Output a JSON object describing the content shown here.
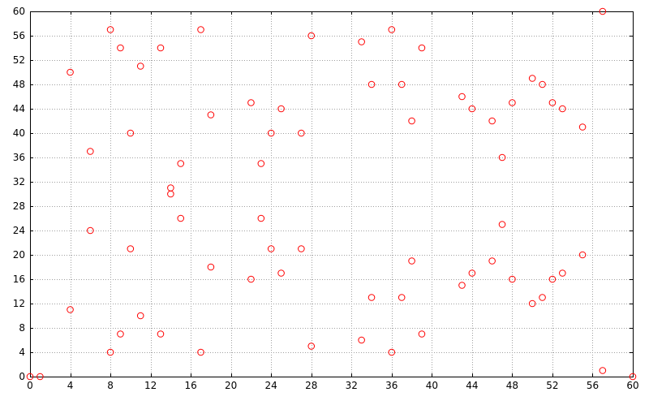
{
  "chart_data": {
    "type": "scatter",
    "title": "",
    "xlabel": "",
    "ylabel": "",
    "xlim": [
      0,
      60
    ],
    "ylim": [
      0,
      60
    ],
    "x_ticks": [
      0,
      4,
      8,
      12,
      16,
      20,
      24,
      28,
      32,
      36,
      40,
      44,
      48,
      52,
      56,
      60
    ],
    "y_ticks": [
      0,
      4,
      8,
      12,
      16,
      20,
      24,
      28,
      32,
      36,
      40,
      44,
      48,
      52,
      56,
      60
    ],
    "x_tick_labels": [
      "0",
      "4",
      "8",
      "12",
      "16",
      "20",
      "24",
      "28",
      "32",
      "36",
      "40",
      "44",
      "48",
      "52",
      "56",
      "60"
    ],
    "y_tick_labels": [
      "0",
      "4",
      "8",
      "12",
      "16",
      "20",
      "24",
      "28",
      "32",
      "36",
      "40",
      "44",
      "48",
      "52",
      "56",
      "60"
    ],
    "grid": true,
    "grid_style": "dotted",
    "marker": "open-circle",
    "series": [
      {
        "color": "#ff0000",
        "points": [
          [
            0,
            0
          ],
          [
            1,
            0
          ],
          [
            57,
            60
          ],
          [
            57,
            1
          ],
          [
            60,
            0
          ],
          [
            4,
            50
          ],
          [
            4,
            11
          ],
          [
            6,
            37
          ],
          [
            6,
            24
          ],
          [
            8,
            57
          ],
          [
            8,
            4
          ],
          [
            9,
            54
          ],
          [
            9,
            7
          ],
          [
            10,
            40
          ],
          [
            10,
            21
          ],
          [
            11,
            51
          ],
          [
            11,
            10
          ],
          [
            13,
            54
          ],
          [
            13,
            7
          ],
          [
            14,
            31
          ],
          [
            14,
            30
          ],
          [
            15,
            35
          ],
          [
            15,
            26
          ],
          [
            17,
            57
          ],
          [
            17,
            4
          ],
          [
            18,
            43
          ],
          [
            18,
            18
          ],
          [
            22,
            45
          ],
          [
            22,
            16
          ],
          [
            23,
            35
          ],
          [
            23,
            26
          ],
          [
            24,
            40
          ],
          [
            24,
            21
          ],
          [
            25,
            44
          ],
          [
            25,
            17
          ],
          [
            27,
            40
          ],
          [
            27,
            21
          ],
          [
            28,
            56
          ],
          [
            28,
            5
          ],
          [
            33,
            55
          ],
          [
            33,
            6
          ],
          [
            34,
            48
          ],
          [
            34,
            13
          ],
          [
            36,
            57
          ],
          [
            36,
            4
          ],
          [
            37,
            48
          ],
          [
            37,
            13
          ],
          [
            38,
            42
          ],
          [
            38,
            19
          ],
          [
            39,
            54
          ],
          [
            39,
            7
          ],
          [
            43,
            46
          ],
          [
            43,
            15
          ],
          [
            44,
            44
          ],
          [
            44,
            17
          ],
          [
            46,
            42
          ],
          [
            46,
            19
          ],
          [
            47,
            36
          ],
          [
            47,
            25
          ],
          [
            48,
            45
          ],
          [
            48,
            16
          ],
          [
            50,
            49
          ],
          [
            50,
            12
          ],
          [
            51,
            48
          ],
          [
            51,
            13
          ],
          [
            52,
            45
          ],
          [
            52,
            16
          ],
          [
            53,
            44
          ],
          [
            53,
            17
          ],
          [
            55,
            41
          ],
          [
            55,
            20
          ]
        ]
      }
    ]
  },
  "style": {
    "marker_color": "#ff0000",
    "grid_color": "#a0a0a0",
    "axis_color": "#000000",
    "background": "#ffffff"
  }
}
